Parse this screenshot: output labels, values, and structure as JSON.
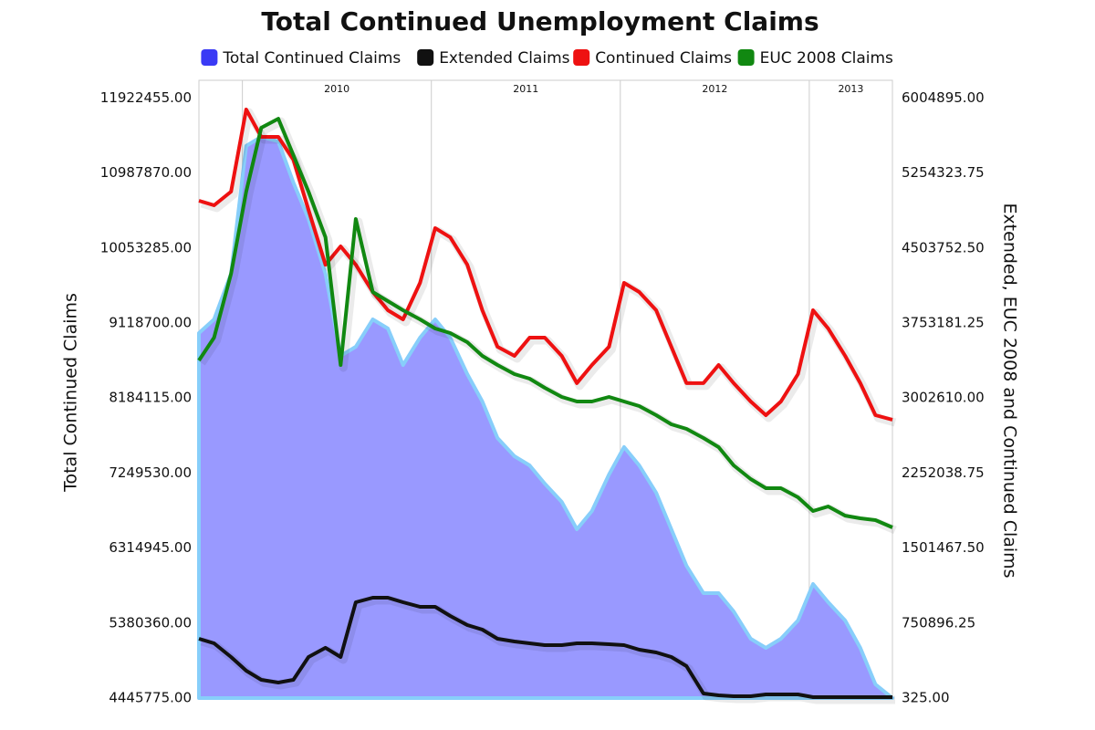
{
  "chart_data": {
    "type": "line",
    "title": "Total Continued Unemployment Claims",
    "ylabel": "Total Continued Claims",
    "y2label": "Extended, EUC 2008 and Continued Claims",
    "legend": "top",
    "x": [
      2009.77,
      2009.85,
      2009.94,
      2010.02,
      2010.1,
      2010.19,
      2010.27,
      2010.35,
      2010.44,
      2010.52,
      2010.6,
      2010.69,
      2010.77,
      2010.85,
      2010.94,
      2011.02,
      2011.1,
      2011.19,
      2011.27,
      2011.35,
      2011.44,
      2011.52,
      2011.6,
      2011.69,
      2011.77,
      2011.85,
      2011.94,
      2012.02,
      2012.1,
      2012.19,
      2012.27,
      2012.35,
      2012.44,
      2012.52,
      2012.6,
      2012.69,
      2012.77,
      2012.85,
      2012.94,
      2013.02,
      2013.1,
      2013.19,
      2013.27,
      2013.35,
      2013.44
    ],
    "xlim": [
      2009.77,
      2013.44
    ],
    "xticks": [
      2010,
      2011,
      2012,
      2013
    ],
    "ylim": [
      4445775,
      12143000
    ],
    "yticks": [
      {
        "value": 4445775,
        "label": "4445775.00"
      },
      {
        "value": 5380360,
        "label": "5380360.00"
      },
      {
        "value": 6314945,
        "label": "6314945.00"
      },
      {
        "value": 7249530,
        "label": "7249530.00"
      },
      {
        "value": 8184115,
        "label": "8184115.00"
      },
      {
        "value": 9118700,
        "label": "9118700.00"
      },
      {
        "value": 10053285,
        "label": "10053285.00"
      },
      {
        "value": 10987870,
        "label": "10987870.00"
      },
      {
        "value": 11922455,
        "label": "11922455.00"
      }
    ],
    "y2lim": [
      325,
      6182000
    ],
    "y2ticks": [
      {
        "value": 325,
        "label": "325.00"
      },
      {
        "value": 750896.25,
        "label": "750896.25"
      },
      {
        "value": 1501467.5,
        "label": "1501467.50"
      },
      {
        "value": 2252038.75,
        "label": "2252038.75"
      },
      {
        "value": 3002610,
        "label": "3002610.00"
      },
      {
        "value": 3753181.25,
        "label": "3753181.25"
      },
      {
        "value": 4503752.5,
        "label": "4503752.50"
      },
      {
        "value": 5254323.75,
        "label": "5254323.75"
      },
      {
        "value": 6004895,
        "label": "6004895.00"
      }
    ],
    "series": [
      {
        "name": "Total Continued Claims",
        "color": "#3a3af5",
        "fill": "#9999ff",
        "style": "area",
        "axis": "y",
        "values": [
          8994000,
          9164000,
          9733000,
          11325000,
          11438000,
          11381000,
          10870000,
          10415000,
          9733000,
          8710000,
          8823000,
          9164000,
          9051000,
          8596000,
          8937000,
          9164000,
          8937000,
          8482000,
          8141000,
          7686000,
          7459000,
          7345000,
          7118000,
          6890000,
          6549000,
          6777000,
          7231000,
          7573000,
          7345000,
          7004000,
          6549000,
          6094000,
          5753000,
          5753000,
          5526000,
          5185000,
          5071000,
          5185000,
          5412000,
          5867000,
          5640000,
          5412000,
          5071000,
          4616000,
          4445775
        ]
      },
      {
        "name": "Extended Claims",
        "color": "#111111",
        "style": "line",
        "axis": "y2",
        "values": [
          594000,
          548000,
          411000,
          274000,
          183000,
          156000,
          183000,
          411000,
          503000,
          411000,
          959000,
          1005000,
          1005000,
          959000,
          913000,
          913000,
          822000,
          731000,
          685000,
          594000,
          566000,
          548000,
          530000,
          530000,
          548000,
          548000,
          539000,
          530000,
          484000,
          457000,
          411000,
          320000,
          46000,
          28000,
          19000,
          19000,
          37000,
          37000,
          37000,
          9500,
          9500,
          9500,
          9500,
          9500,
          9500
        ]
      },
      {
        "name": "Continued Claims",
        "color": "#ee1111",
        "style": "line",
        "axis": "y2",
        "values": [
          4977000,
          4931000,
          5068000,
          5890000,
          5616000,
          5616000,
          5388000,
          4885000,
          4337000,
          4520000,
          4337000,
          4064000,
          3881000,
          3790000,
          4155000,
          4703000,
          4611000,
          4337000,
          3881000,
          3516000,
          3424000,
          3607000,
          3607000,
          3424000,
          3151000,
          3333000,
          3516000,
          4155000,
          4064000,
          3881000,
          3516000,
          3151000,
          3151000,
          3333000,
          3151000,
          2968000,
          2831000,
          2968000,
          3242000,
          3881000,
          3698000,
          3424000,
          3151000,
          2831000,
          2785000
        ]
      },
      {
        "name": "EUC 2008 Claims",
        "color": "#118811",
        "style": "line",
        "axis": "y2",
        "values": [
          3379000,
          3607000,
          4246000,
          5068000,
          5707000,
          5798000,
          5433000,
          5068000,
          4611000,
          3333000,
          4794000,
          4064000,
          3972000,
          3881000,
          3790000,
          3698000,
          3653000,
          3561000,
          3424000,
          3333000,
          3242000,
          3196000,
          3105000,
          3014000,
          2968000,
          2968000,
          3014000,
          2968000,
          2922000,
          2831000,
          2740000,
          2694000,
          2603000,
          2511000,
          2329000,
          2192000,
          2100000,
          2100000,
          2009000,
          1872000,
          1918000,
          1826000,
          1799000,
          1781000,
          1708000
        ]
      }
    ]
  }
}
